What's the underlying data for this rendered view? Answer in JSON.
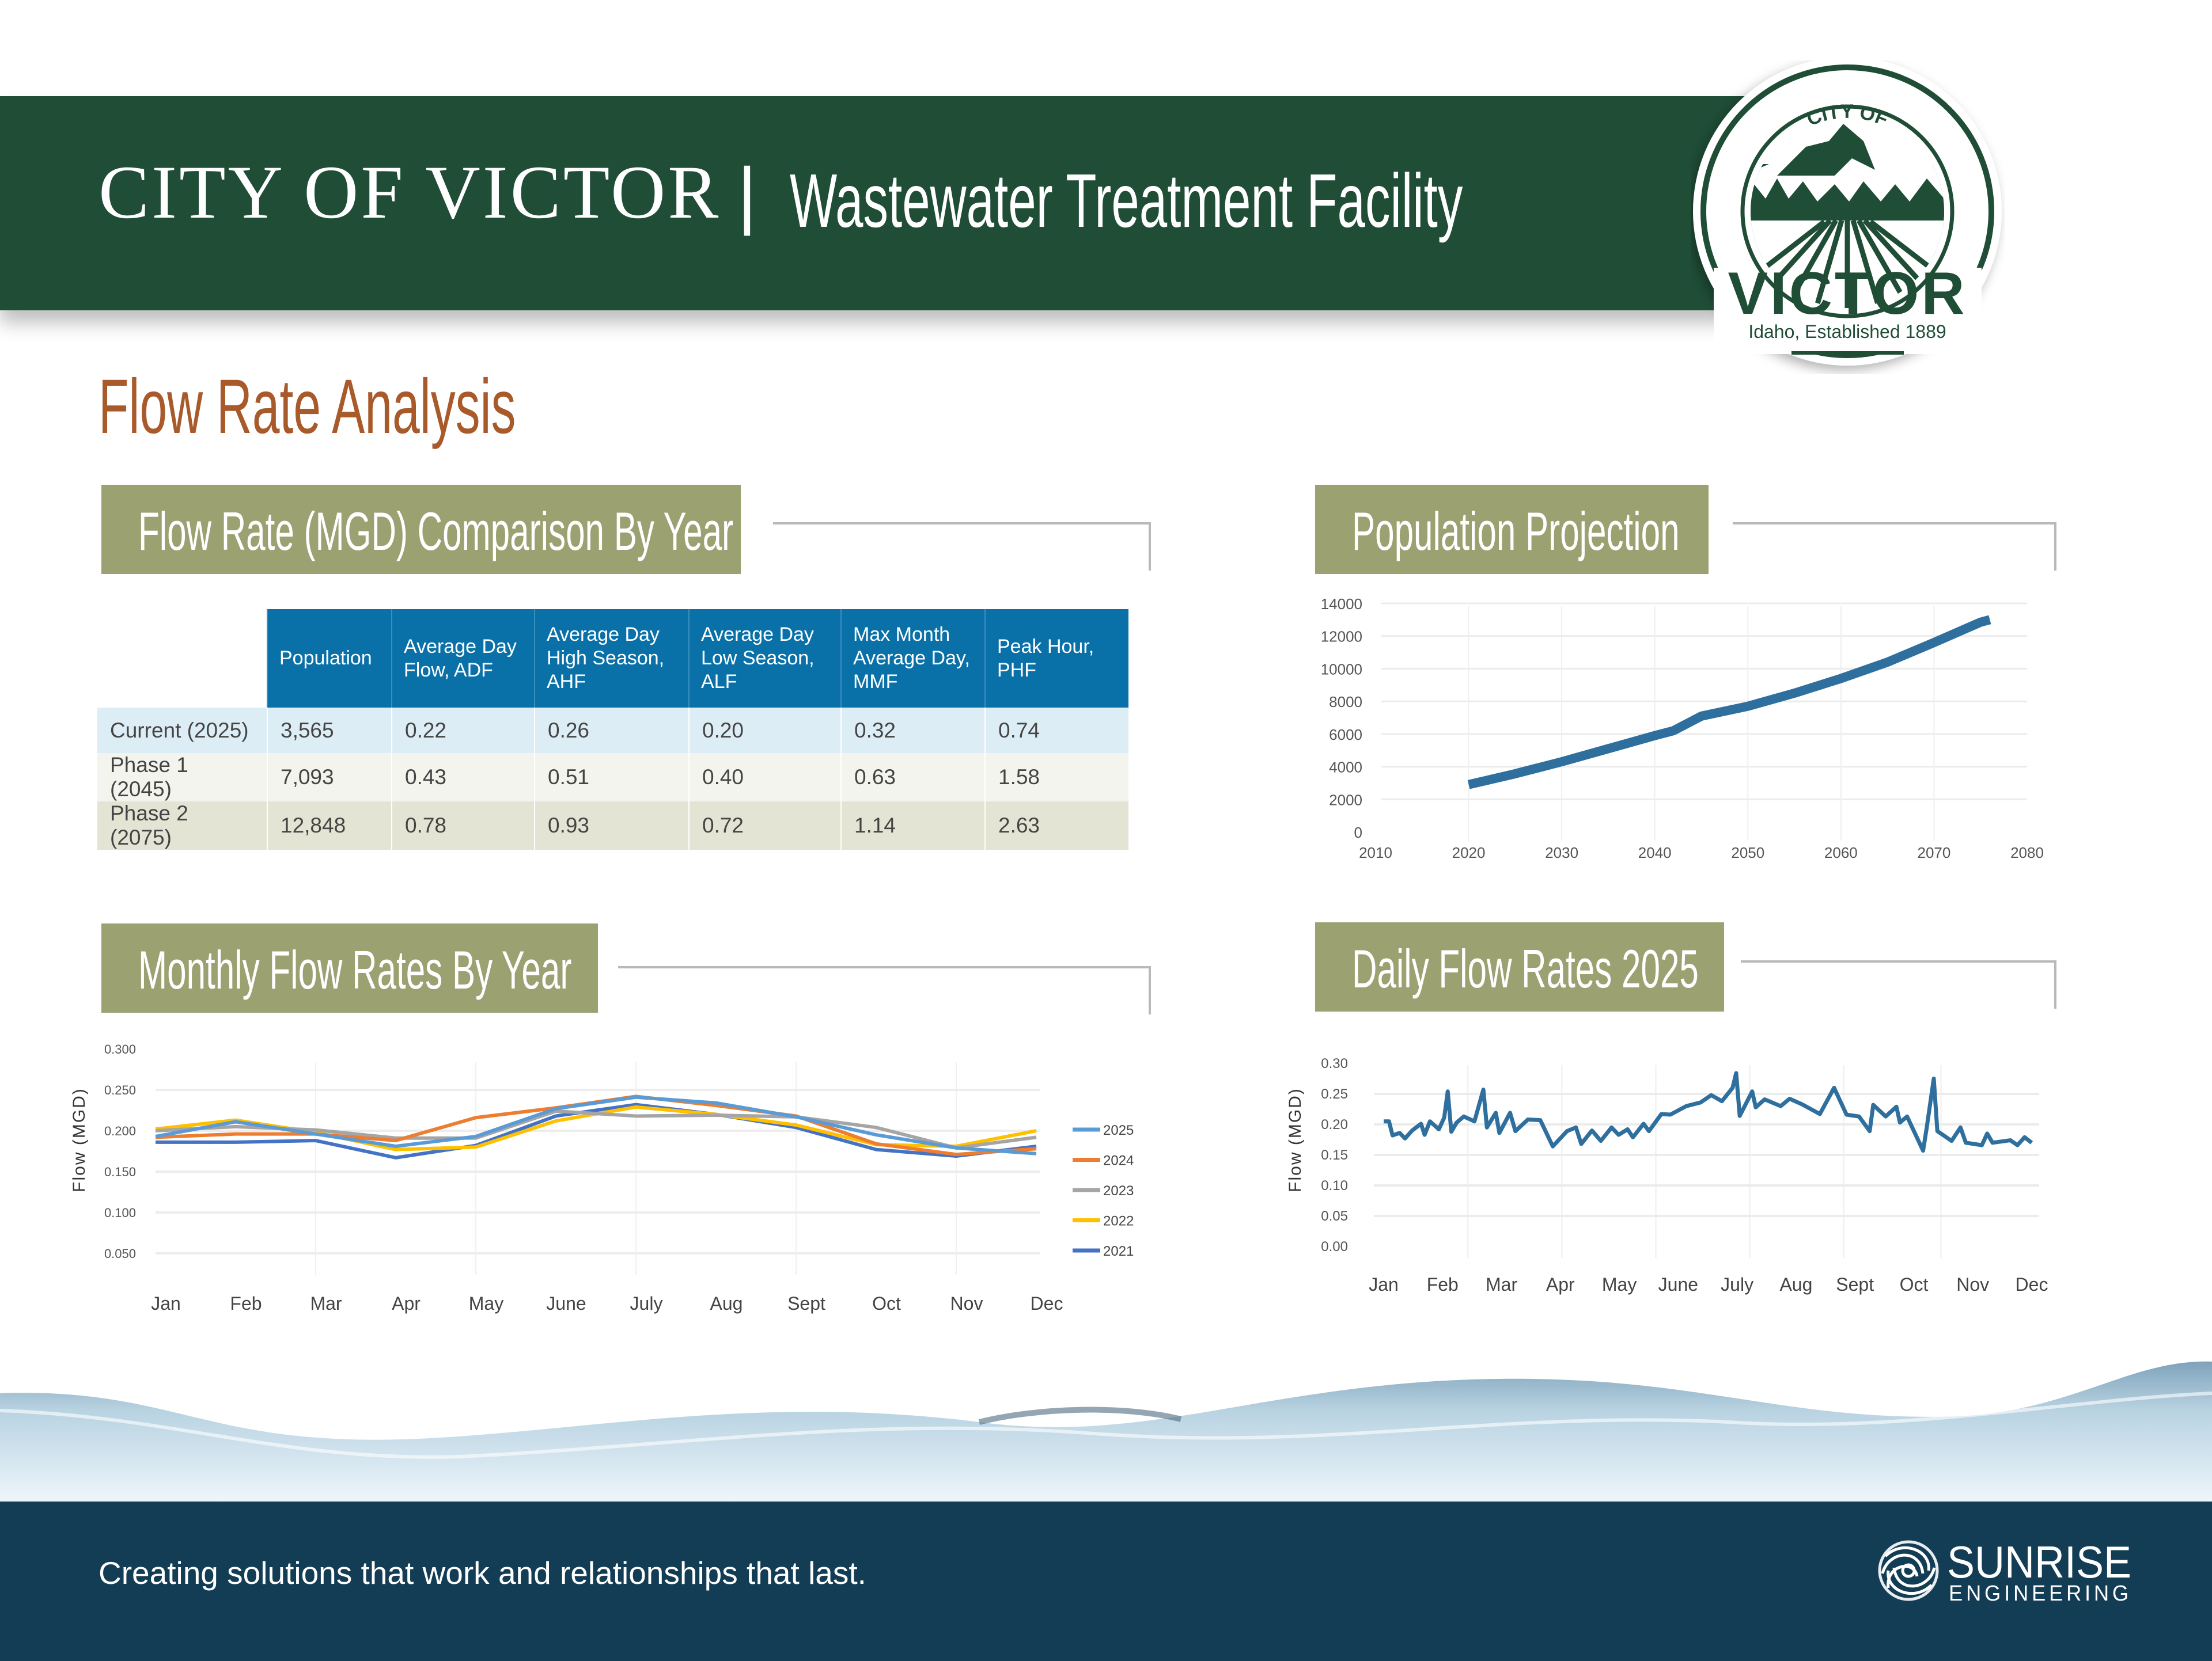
{
  "header": {
    "org": "CITY OF VICTOR",
    "separator": "|",
    "subtitle": "Wastewater Treatment Facility",
    "brand_color": "#1f4d36"
  },
  "logo": {
    "top_text": "CITY OF",
    "name": "VICTOR",
    "tagline": "Idaho, Established 1889"
  },
  "page_title": "Flow Rate Analysis",
  "sections": {
    "table_title": "Flow Rate (MGD) Comparison By Year",
    "population_title": "Population Projection",
    "monthly_title": "Monthly Flow Rates By Year",
    "daily_title": "Daily Flow Rates 2025"
  },
  "flow_table": {
    "columns": [
      "Population",
      "Average Day Flow, ADF",
      "Average Day High Season, AHF",
      "Average Day Low Season, ALF",
      "Max Month Average Day, MMF",
      "Peak Hour, PHF"
    ],
    "rows": [
      {
        "label": "Current (2025)",
        "values": [
          "3,565",
          "0.22",
          "0.26",
          "0.20",
          "0.32",
          "0.74"
        ]
      },
      {
        "label": "Phase 1 (2045)",
        "values": [
          "7,093",
          "0.43",
          "0.51",
          "0.40",
          "0.63",
          "1.58"
        ]
      },
      {
        "label": "Phase 2 (2075)",
        "values": [
          "12,848",
          "0.78",
          "0.93",
          "0.72",
          "1.14",
          "2.63"
        ]
      }
    ]
  },
  "chart_data": [
    {
      "type": "line",
      "xlim": [
        2010,
        2080
      ],
      "ylim": [
        0,
        14000
      ],
      "x_ticks": [
        "2010",
        "2020",
        "2030",
        "2040",
        "2050",
        "2060",
        "2070",
        "2080"
      ],
      "y_ticks": [
        "0",
        "2000",
        "4000",
        "6000",
        "8000",
        "10000",
        "12000",
        "14000"
      ],
      "grid": true,
      "color": "#2e6f9e",
      "x": [
        2020,
        2025,
        2030,
        2035,
        2040,
        2042,
        2045,
        2050,
        2055,
        2060,
        2065,
        2070,
        2075,
        2076
      ],
      "y": [
        2900,
        3565,
        4300,
        5100,
        5900,
        6200,
        7093,
        7700,
        8500,
        9400,
        10400,
        11600,
        12848,
        13000
      ]
    },
    {
      "type": "line",
      "ylabel": "Flow (MGD)",
      "ylim": [
        0,
        0.3
      ],
      "y_ticks": [
        "0.050",
        "0.100",
        "0.150",
        "0.200",
        "0.250",
        "0.300"
      ],
      "categories": [
        "Jan",
        "Feb",
        "Mar",
        "Apr",
        "May",
        "June",
        "July",
        "Aug",
        "Sept",
        "Oct",
        "Nov",
        "Dec"
      ],
      "grid": true,
      "legend": "right",
      "series": [
        {
          "name": "2025",
          "color": "#5b9bd5",
          "values": [
            0.193,
            0.211,
            0.196,
            0.181,
            0.193,
            0.227,
            0.241,
            0.234,
            0.217,
            0.195,
            0.179,
            0.172
          ]
        },
        {
          "name": "2024",
          "color": "#ed7d31",
          "values": [
            0.192,
            0.196,
            0.196,
            0.188,
            0.216,
            0.228,
            0.242,
            0.231,
            0.218,
            0.184,
            0.171,
            0.178
          ]
        },
        {
          "name": "2023",
          "color": "#a5a5a5",
          "values": [
            0.2,
            0.205,
            0.201,
            0.191,
            0.191,
            0.224,
            0.218,
            0.219,
            0.217,
            0.204,
            0.179,
            0.192
          ]
        },
        {
          "name": "2022",
          "color": "#ffc000",
          "values": [
            0.202,
            0.213,
            0.198,
            0.177,
            0.18,
            0.212,
            0.229,
            0.22,
            0.207,
            0.183,
            0.181,
            0.2
          ]
        },
        {
          "name": "2021",
          "color": "#4472c4",
          "values": [
            0.186,
            0.186,
            0.188,
            0.167,
            0.182,
            0.218,
            0.232,
            0.22,
            0.204,
            0.177,
            0.169,
            0.181
          ]
        }
      ]
    },
    {
      "type": "line",
      "ylabel": "Flow (MGD)",
      "ylim": [
        0,
        0.3
      ],
      "y_ticks": [
        "0.00",
        "0.05",
        "0.10",
        "0.15",
        "0.20",
        "0.25",
        "0.30"
      ],
      "x_ticks": [
        "Jan",
        "Feb",
        "Mar",
        "Apr",
        "May",
        "June",
        "July",
        "Aug",
        "Sept",
        "Oct",
        "Nov",
        "Dec"
      ],
      "grid": true,
      "color": "#2e6f9e",
      "x": [
        "2025-01-01",
        "2025-01-04",
        "2025-01-06",
        "2025-01-10",
        "2025-01-13",
        "2025-01-17",
        "2025-01-22",
        "2025-01-24",
        "2025-01-27",
        "2025-02-01",
        "2025-02-04",
        "2025-02-06",
        "2025-02-08",
        "2025-02-11",
        "2025-02-15",
        "2025-02-21",
        "2025-02-26",
        "2025-02-28",
        "2025-03-05",
        "2025-03-07",
        "2025-03-13",
        "2025-03-16",
        "2025-03-23",
        "2025-03-30",
        "2025-04-06",
        "2025-04-14",
        "2025-04-19",
        "2025-04-22",
        "2025-04-28",
        "2025-05-03",
        "2025-05-09",
        "2025-05-13",
        "2025-05-18",
        "2025-05-21",
        "2025-05-27",
        "2025-05-30",
        "2025-06-06",
        "2025-06-11",
        "2025-06-20",
        "2025-06-28",
        "2025-07-04",
        "2025-07-10",
        "2025-07-16",
        "2025-07-18",
        "2025-07-20",
        "2025-07-27",
        "2025-07-29",
        "2025-08-03",
        "2025-08-12",
        "2025-08-17",
        "2025-08-24",
        "2025-09-03",
        "2025-09-11",
        "2025-09-18",
        "2025-09-25",
        "2025-10-01",
        "2025-10-03",
        "2025-10-10",
        "2025-10-16",
        "2025-10-18",
        "2025-10-22",
        "2025-10-31",
        "2025-11-02",
        "2025-11-06",
        "2025-11-08",
        "2025-11-16",
        "2025-11-21",
        "2025-11-24",
        "2025-12-03",
        "2025-12-06",
        "2025-12-09",
        "2025-12-19",
        "2025-12-23",
        "2025-12-27",
        "2025-12-31"
      ],
      "y": [
        0.205,
        0.205,
        0.182,
        0.186,
        0.177,
        0.19,
        0.201,
        0.183,
        0.205,
        0.192,
        0.211,
        0.254,
        0.188,
        0.203,
        0.213,
        0.205,
        0.257,
        0.195,
        0.219,
        0.186,
        0.219,
        0.189,
        0.208,
        0.207,
        0.164,
        0.189,
        0.195,
        0.168,
        0.19,
        0.173,
        0.195,
        0.183,
        0.192,
        0.179,
        0.201,
        0.189,
        0.217,
        0.216,
        0.23,
        0.236,
        0.248,
        0.238,
        0.26,
        0.284,
        0.214,
        0.254,
        0.228,
        0.241,
        0.23,
        0.242,
        0.233,
        0.217,
        0.26,
        0.216,
        0.213,
        0.189,
        0.232,
        0.213,
        0.229,
        0.203,
        0.213,
        0.157,
        0.194,
        0.275,
        0.189,
        0.173,
        0.195,
        0.17,
        0.166,
        0.185,
        0.17,
        0.174,
        0.166,
        0.179,
        0.17
      ]
    }
  ],
  "footer": {
    "tagline": "Creating solutions that work and relationships that last.",
    "company_name": "SUNRISE",
    "company_sub": "ENGINEERING",
    "color": "#133d55"
  }
}
